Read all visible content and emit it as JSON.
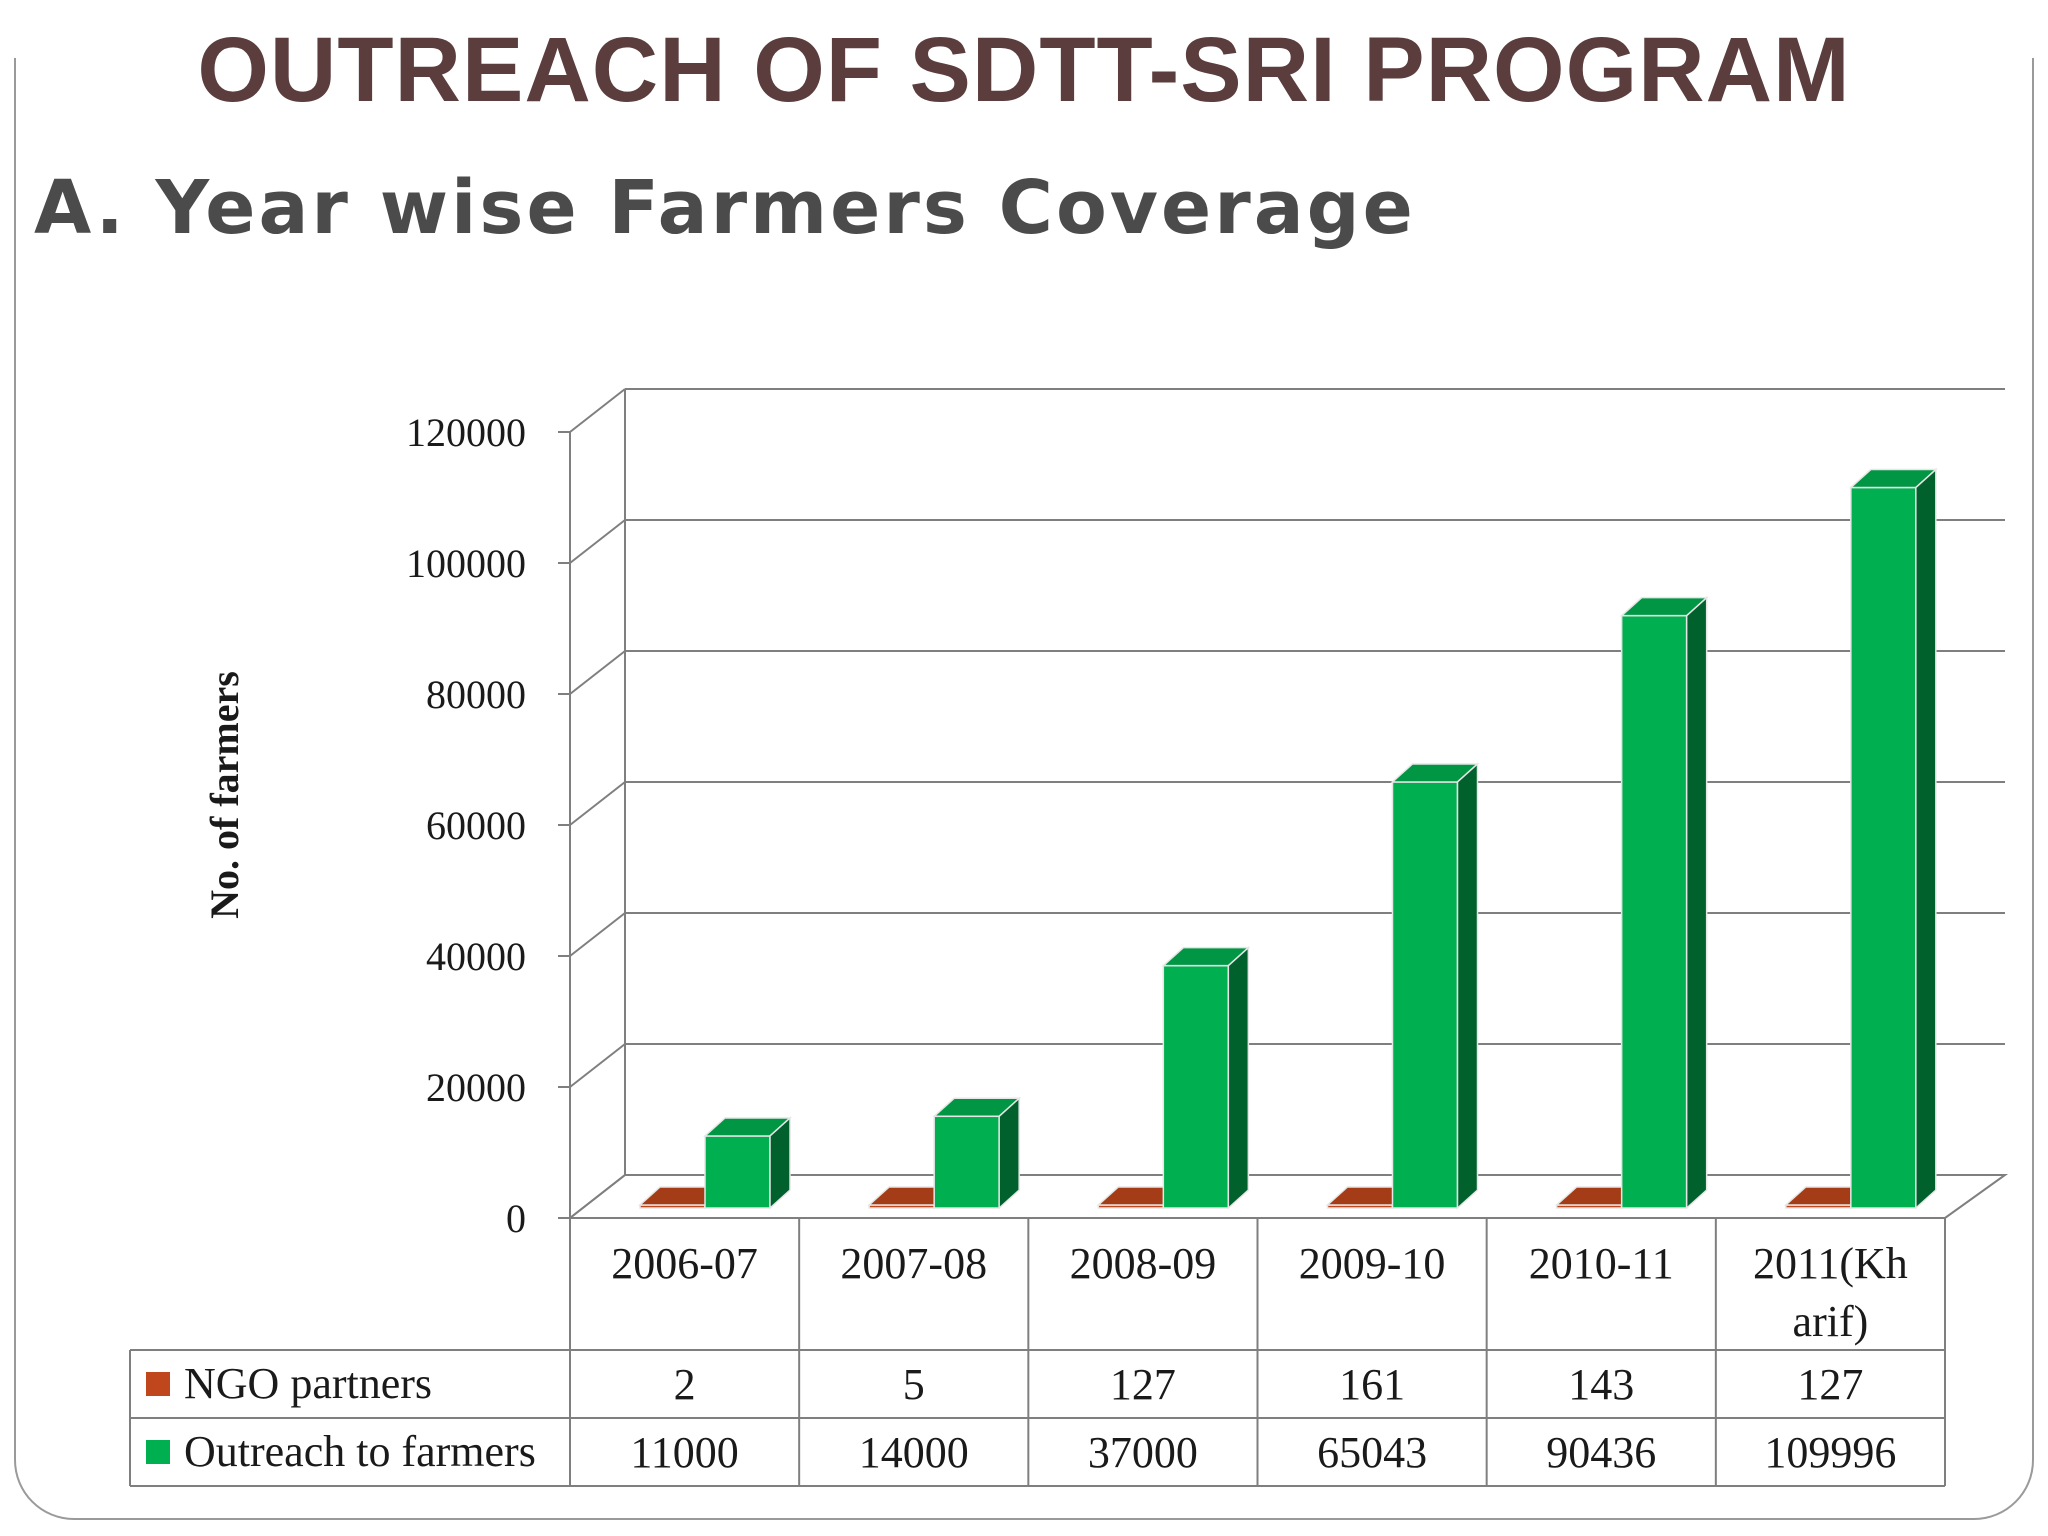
{
  "slide": {
    "title": "OUTREACH OF SDTT-SRI PROGRAM",
    "subtitle": "A. Year wise Farmers Coverage"
  },
  "colors": {
    "title": "#5b3d3d",
    "subtitle": "#4b4b4b",
    "outreach_green": "#00b050",
    "ngo_orange": "#c0461b"
  },
  "chart_data": {
    "type": "bar",
    "three_d": true,
    "title": "",
    "xlabel": "",
    "ylabel": "No. of farmers",
    "ylim": [
      0,
      120000
    ],
    "yticks": [
      0,
      20000,
      40000,
      60000,
      80000,
      100000,
      120000
    ],
    "grid": true,
    "legend": "data-table",
    "categories": [
      "2006-07",
      "2007-08",
      "2008-09",
      "2009-10",
      "2010-11",
      "2011(Kharif)"
    ],
    "category_lines": [
      [
        "2006-07"
      ],
      [
        "2007-08"
      ],
      [
        "2008-09"
      ],
      [
        "2009-10"
      ],
      [
        "2010-11"
      ],
      [
        "2011(Kh",
        "arif)"
      ]
    ],
    "series": [
      {
        "name": "NGO partners",
        "color": "#c0461b",
        "values": [
          2,
          5,
          127,
          161,
          143,
          127
        ]
      },
      {
        "name": "Outreach to farmers",
        "color": "#00b050",
        "values": [
          11000,
          14000,
          37000,
          65043,
          90436,
          109996
        ]
      }
    ]
  }
}
